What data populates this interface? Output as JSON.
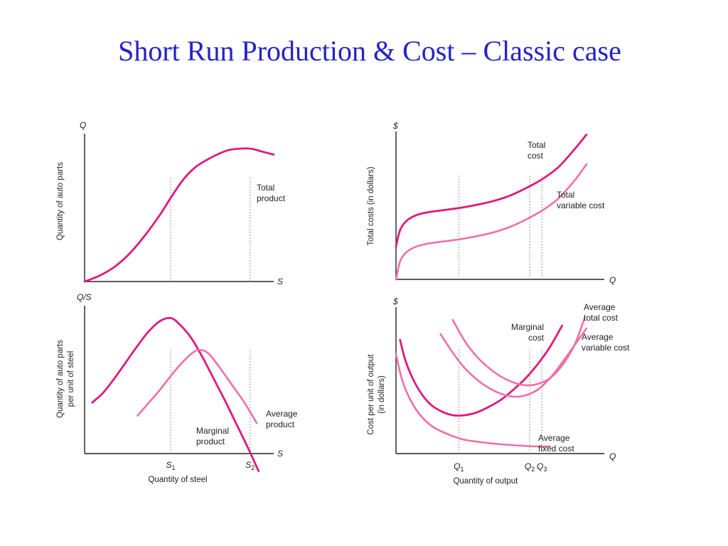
{
  "title": "Short Run Production & Cost – Classic case",
  "colors": {
    "dark": "#e0197d",
    "light": "#ee6fa9",
    "title": "#2323c8"
  },
  "chart_data": [
    {
      "type": "line",
      "panel": "top-left",
      "y_axis_symbol": "Q",
      "x_axis_symbol": "S",
      "ylabel": "Quantity of auto parts",
      "series": [
        {
          "name": "Total product",
          "label_lines": [
            "Total",
            "product"
          ],
          "color": "dark",
          "x": [
            0,
            0.08,
            0.16,
            0.24,
            0.32,
            0.4,
            0.46,
            0.52,
            0.58,
            0.64,
            0.7,
            0.76,
            0.82,
            0.88,
            0.94,
            1.0
          ],
          "y": [
            0,
            0.04,
            0.1,
            0.19,
            0.31,
            0.45,
            0.57,
            0.68,
            0.76,
            0.81,
            0.85,
            0.88,
            0.89,
            0.89,
            0.87,
            0.85
          ]
        }
      ],
      "guides_x": [
        0.455,
        0.875
      ],
      "xlim": [
        0,
        1
      ],
      "ylim": [
        0,
        1
      ]
    },
    {
      "type": "line",
      "panel": "bottom-left",
      "y_axis_symbol": "Q/S",
      "x_axis_symbol": "S",
      "ylabel_lines": [
        "Quantity of auto parts",
        "per unit of steel"
      ],
      "xlabel": "Quantity of steel",
      "x_ticks": [
        {
          "x": 0.455,
          "main": "S",
          "sub": "1"
        },
        {
          "x": 0.875,
          "main": "S",
          "sub": "2"
        }
      ],
      "series": [
        {
          "name": "Marginal product",
          "label_lines": [
            "Marginal",
            "product"
          ],
          "color": "dark",
          "x": [
            0.04,
            0.1,
            0.16,
            0.22,
            0.28,
            0.34,
            0.4,
            0.455,
            0.5,
            0.56,
            0.62,
            0.68,
            0.74,
            0.8,
            0.86,
            0.92
          ],
          "y": [
            0.35,
            0.42,
            0.52,
            0.63,
            0.74,
            0.84,
            0.91,
            0.93,
            0.89,
            0.8,
            0.67,
            0.52,
            0.37,
            0.21,
            0.05,
            -0.12
          ]
        },
        {
          "name": "Average product",
          "label_lines": [
            "Average",
            "product"
          ],
          "color": "light",
          "x": [
            0.28,
            0.34,
            0.4,
            0.46,
            0.52,
            0.58,
            0.62,
            0.66,
            0.72,
            0.78,
            0.84,
            0.91
          ],
          "y": [
            0.26,
            0.35,
            0.44,
            0.54,
            0.63,
            0.7,
            0.71,
            0.68,
            0.58,
            0.47,
            0.36,
            0.21
          ]
        }
      ],
      "guides_x": [
        0.455,
        0.875
      ],
      "xlim": [
        0,
        1
      ],
      "ylim": [
        0,
        1
      ]
    },
    {
      "type": "line",
      "panel": "top-right",
      "y_axis_symbol": "$",
      "x_axis_symbol": "Q",
      "ylabel": "Total costs (in dollars)",
      "series": [
        {
          "name": "Total cost",
          "label_lines": [
            "Total",
            "cost"
          ],
          "color": "dark",
          "x": [
            0,
            0.02,
            0.05,
            0.1,
            0.16,
            0.24,
            0.32,
            0.4,
            0.48,
            0.56,
            0.64,
            0.72,
            0.8,
            0.88,
            0.94
          ],
          "y": [
            0.22,
            0.33,
            0.39,
            0.43,
            0.45,
            0.465,
            0.48,
            0.5,
            0.525,
            0.56,
            0.61,
            0.67,
            0.75,
            0.87,
            0.97
          ]
        },
        {
          "name": "Total variable cost",
          "label_lines": [
            "Total",
            "variable cost"
          ],
          "color": "light",
          "x": [
            0,
            0.02,
            0.05,
            0.1,
            0.16,
            0.24,
            0.32,
            0.4,
            0.48,
            0.56,
            0.64,
            0.72,
            0.8,
            0.88,
            0.94
          ],
          "y": [
            0.0,
            0.12,
            0.18,
            0.22,
            0.24,
            0.255,
            0.27,
            0.29,
            0.315,
            0.35,
            0.4,
            0.46,
            0.54,
            0.66,
            0.77
          ]
        }
      ],
      "guides_x": [
        0.31,
        0.66,
        0.72
      ],
      "xlim": [
        0,
        1
      ],
      "ylim": [
        0,
        1
      ]
    },
    {
      "type": "line",
      "panel": "bottom-right",
      "y_axis_symbol": "$",
      "x_axis_symbol": "Q",
      "ylabel_lines": [
        "Cost per unit of output",
        "(in dollars)"
      ],
      "xlabel": "Quantity of output",
      "x_ticks": [
        {
          "x": 0.31,
          "main": "Q",
          "sub": "1"
        },
        {
          "x": 0.66,
          "main": "Q",
          "sub": "2"
        },
        {
          "x": 0.72,
          "main": "Q",
          "sub": "3"
        }
      ],
      "series": [
        {
          "name": "Marginal cost",
          "label_lines": [
            "Marginal",
            "cost"
          ],
          "color": "dark",
          "x": [
            0.02,
            0.05,
            0.1,
            0.16,
            0.22,
            0.28,
            0.34,
            0.4,
            0.46,
            0.52,
            0.58,
            0.64,
            0.7,
            0.76,
            0.82
          ],
          "y": [
            0.8,
            0.64,
            0.48,
            0.36,
            0.3,
            0.27,
            0.27,
            0.29,
            0.33,
            0.38,
            0.45,
            0.53,
            0.63,
            0.75,
            0.9
          ]
        },
        {
          "name": "Average total cost",
          "label_lines": [
            "Average",
            "total cost"
          ],
          "color": "light",
          "x": [
            0.28,
            0.34,
            0.4,
            0.46,
            0.52,
            0.58,
            0.64,
            0.7,
            0.76,
            0.82,
            0.88,
            0.93
          ],
          "y": [
            0.94,
            0.79,
            0.68,
            0.6,
            0.54,
            0.5,
            0.48,
            0.49,
            0.53,
            0.62,
            0.76,
            0.95
          ]
        },
        {
          "name": "Average variable cost",
          "label_lines": [
            "Average",
            "variable cost"
          ],
          "color": "light",
          "x": [
            0.22,
            0.28,
            0.34,
            0.4,
            0.46,
            0.52,
            0.58,
            0.64,
            0.7,
            0.76,
            0.82,
            0.88,
            0.94
          ],
          "y": [
            0.84,
            0.71,
            0.6,
            0.52,
            0.46,
            0.42,
            0.4,
            0.41,
            0.45,
            0.53,
            0.64,
            0.76,
            0.88
          ]
        },
        {
          "name": "Average fixed cost",
          "label_lines": [
            "Average",
            "fixed cost"
          ],
          "color": "light",
          "x": [
            0.0,
            0.03,
            0.07,
            0.12,
            0.18,
            0.25,
            0.33,
            0.42,
            0.52,
            0.62,
            0.7,
            0.76
          ],
          "y": [
            0.7,
            0.52,
            0.38,
            0.27,
            0.19,
            0.14,
            0.1,
            0.08,
            0.065,
            0.055,
            0.05,
            0.05
          ]
        }
      ],
      "guides_x": [
        0.31,
        0.66,
        0.72
      ],
      "xlim": [
        0,
        1
      ],
      "ylim": [
        0,
        1
      ]
    }
  ]
}
